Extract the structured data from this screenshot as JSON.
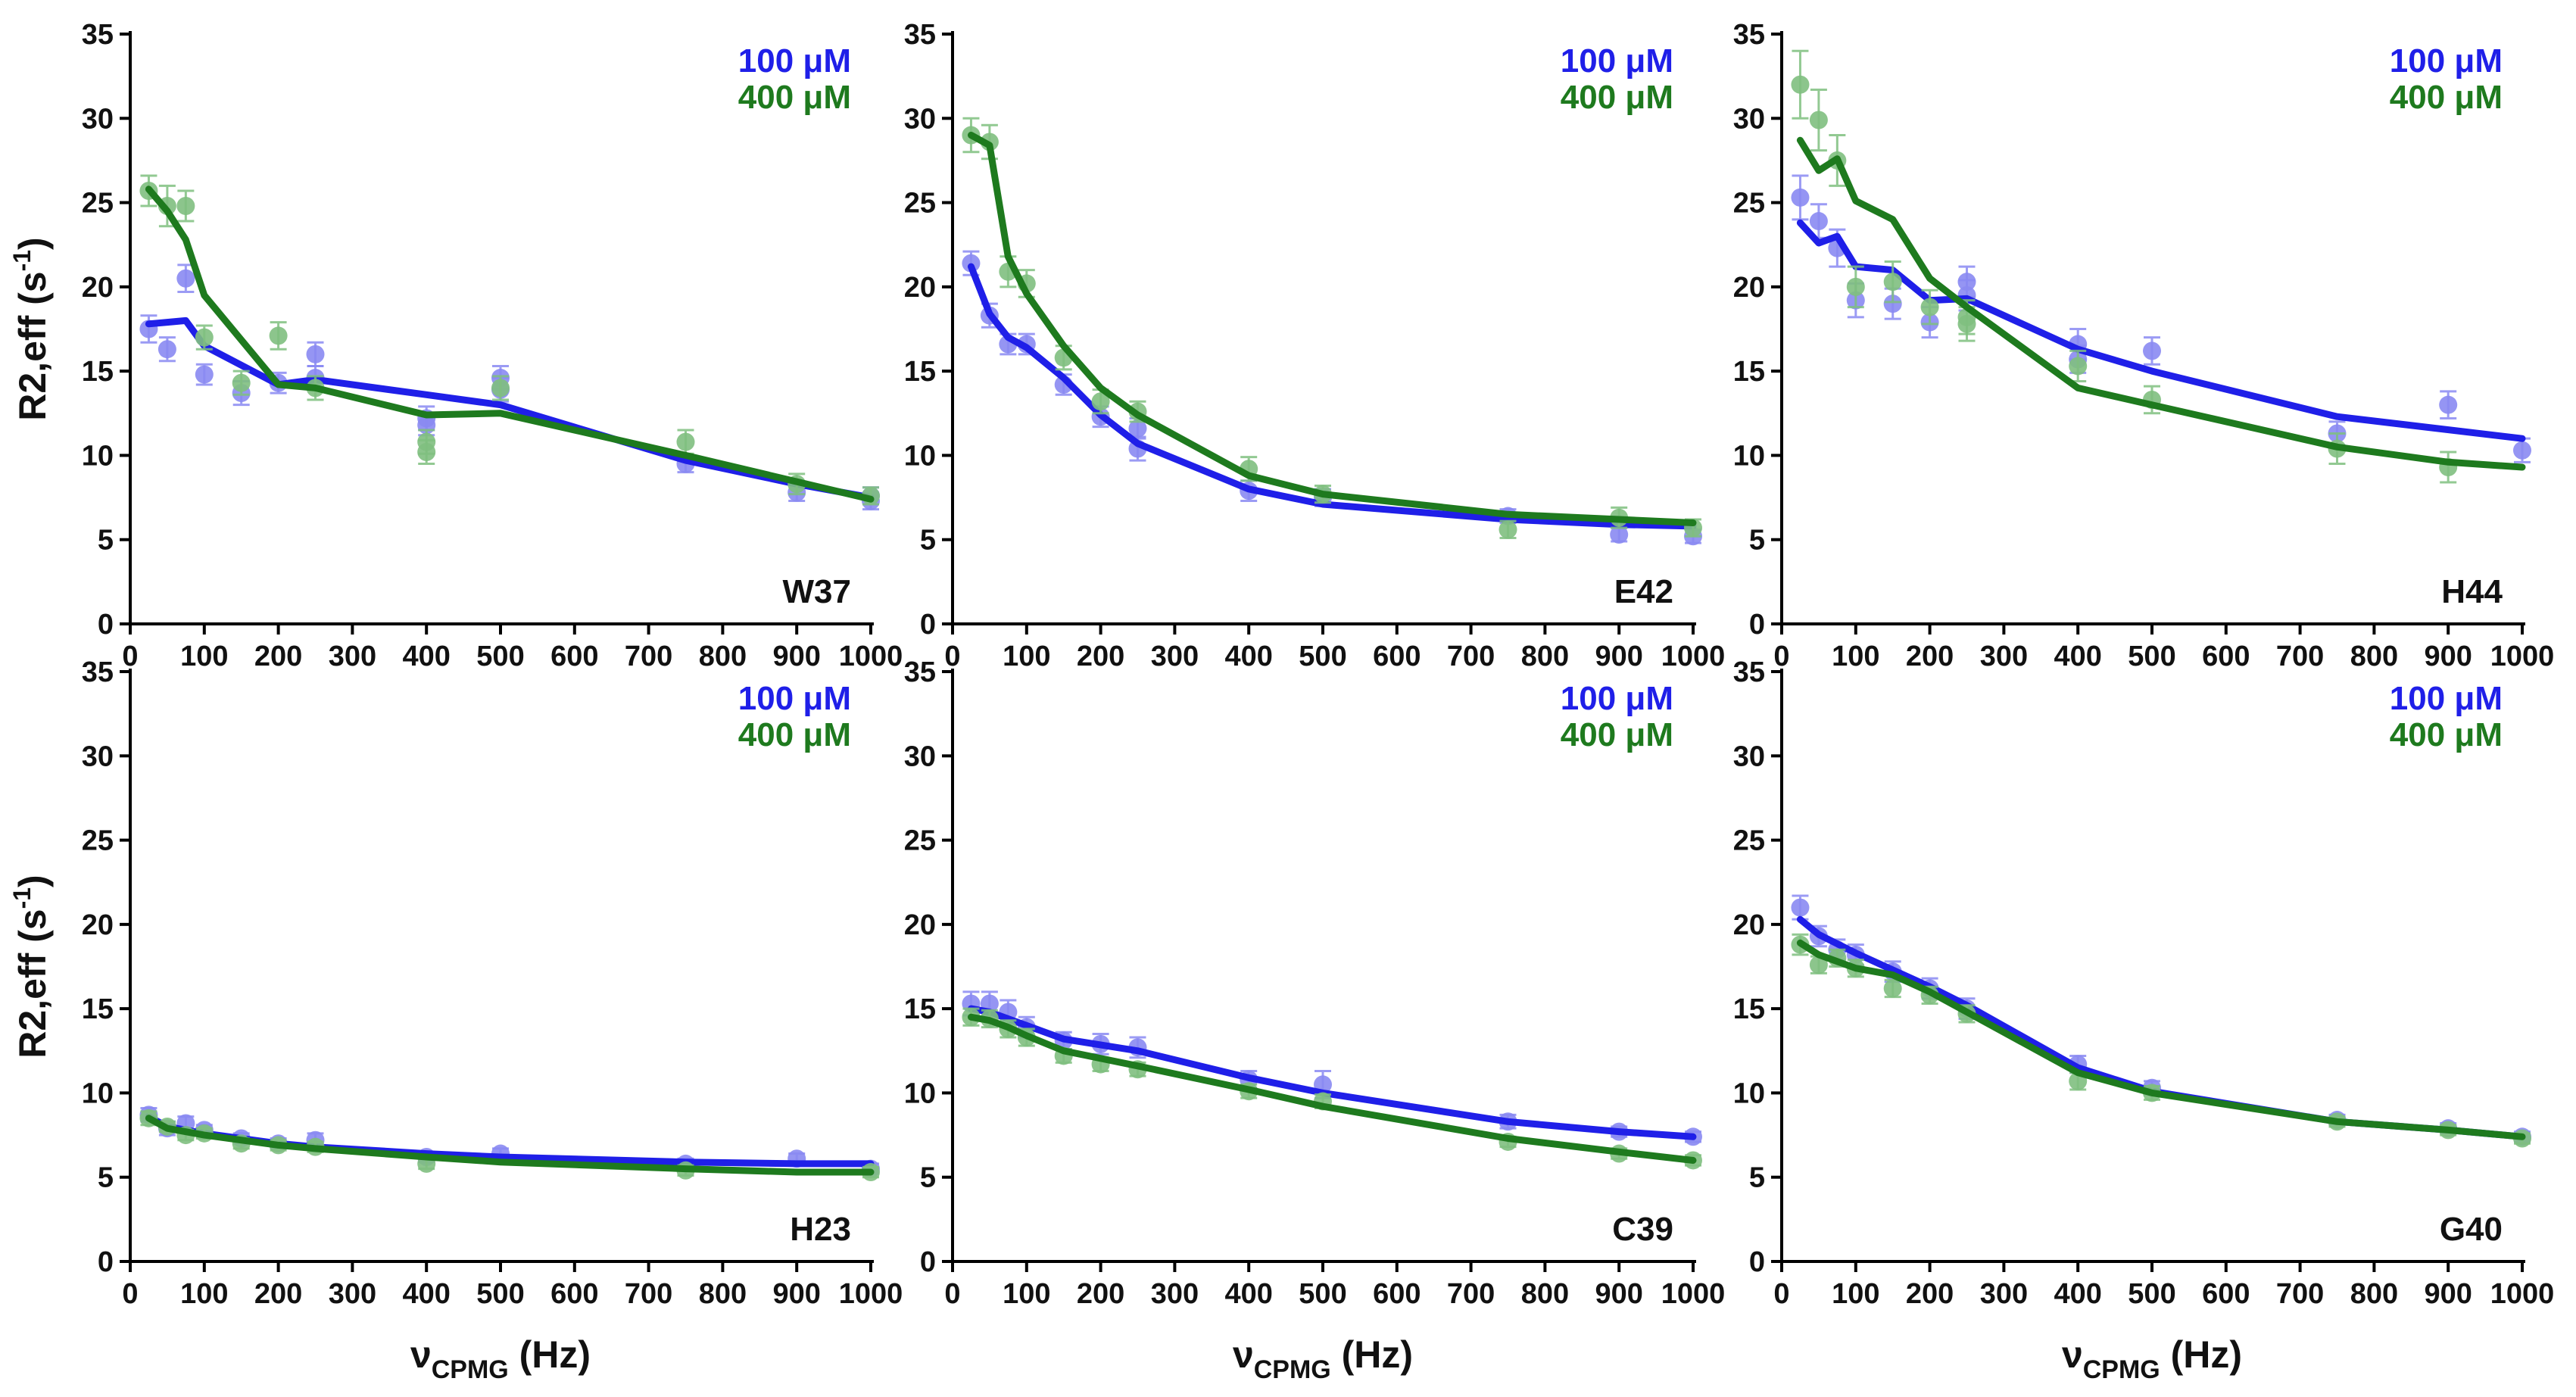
{
  "colors": {
    "c100": "#1f1fe8",
    "c400": "#1e7a1e",
    "c100_point": "#8a8af2",
    "c400_point": "#7fbf7f"
  },
  "axes": {
    "xlabel_nu": "ν",
    "xlabel_sub": "CPMG",
    "xlabel_unit": " (Hz)",
    "ylabel_main": "R2,eff (s",
    "ylabel_sup": "-1",
    "ylabel_close": ")",
    "xticks": [
      "0",
      "100",
      "200",
      "300",
      "400",
      "500",
      "600",
      "700",
      "800",
      "900",
      "1000"
    ],
    "yticks": [
      "0",
      "5",
      "10",
      "15",
      "20",
      "25",
      "30",
      "35"
    ]
  },
  "chart_data": [
    {
      "type": "scatter",
      "panel": "W37",
      "residue": "W37",
      "xlim": [
        0,
        1000
      ],
      "ylim": [
        0,
        35
      ],
      "xlabel": "νCPMG (Hz)",
      "ylabel": "R2,eff (s-1)",
      "series": [
        {
          "name": "100 μM",
          "color_key": "c100",
          "x": [
            25,
            50,
            75,
            100,
            150,
            200,
            250,
            250,
            400,
            400,
            500,
            500,
            750,
            900,
            1000,
            1000
          ],
          "y": [
            17.5,
            16.3,
            20.5,
            14.8,
            13.7,
            14.3,
            16.0,
            14.6,
            12.2,
            11.8,
            14.6,
            13.9,
            9.5,
            7.8,
            7.6,
            7.3
          ],
          "err": [
            0.8,
            0.7,
            0.8,
            0.6,
            0.7,
            0.6,
            0.7,
            0.7,
            0.7,
            0.6,
            0.7,
            0.7,
            0.5,
            0.5,
            0.5,
            0.5
          ],
          "fit_x": [
            25,
            50,
            75,
            100,
            200,
            250,
            400,
            500,
            750,
            900,
            1000
          ],
          "fit_y": [
            17.8,
            17.9,
            18.0,
            16.5,
            14.2,
            14.5,
            13.6,
            13.0,
            9.7,
            8.3,
            7.5
          ]
        },
        {
          "name": "400 μM",
          "color_key": "c400",
          "x": [
            25,
            50,
            75,
            100,
            150,
            200,
            250,
            400,
            400,
            500,
            750,
            900,
            1000
          ],
          "y": [
            25.7,
            24.8,
            24.8,
            17.0,
            14.3,
            17.1,
            14.0,
            10.8,
            10.2,
            14.0,
            10.8,
            8.3,
            7.6
          ],
          "err": [
            0.9,
            1.2,
            0.9,
            0.7,
            0.7,
            0.8,
            0.7,
            0.7,
            0.7,
            0.7,
            0.7,
            0.6,
            0.5
          ],
          "fit_x": [
            25,
            50,
            75,
            100,
            200,
            250,
            400,
            500,
            750,
            1000
          ],
          "fit_y": [
            25.8,
            24.5,
            22.8,
            19.5,
            14.2,
            14.0,
            12.4,
            12.5,
            10.0,
            7.4
          ]
        }
      ]
    },
    {
      "type": "scatter",
      "panel": "E42",
      "residue": "E42",
      "xlim": [
        0,
        1000
      ],
      "ylim": [
        0,
        35
      ],
      "xlabel": "νCPMG (Hz)",
      "ylabel": "R2,eff (s-1)",
      "series": [
        {
          "name": "100 μM",
          "color_key": "c100",
          "x": [
            25,
            50,
            75,
            100,
            150,
            200,
            250,
            250,
            400,
            500,
            750,
            900,
            1000
          ],
          "y": [
            21.4,
            18.3,
            16.6,
            16.6,
            14.2,
            12.3,
            10.4,
            11.6,
            7.9,
            7.5,
            6.4,
            5.3,
            5.2
          ],
          "err": [
            0.7,
            0.7,
            0.6,
            0.6,
            0.6,
            0.6,
            0.7,
            0.6,
            0.6,
            0.5,
            0.4,
            0.4,
            0.4
          ],
          "fit_x": [
            25,
            50,
            75,
            100,
            150,
            200,
            250,
            400,
            500,
            750,
            900,
            1000
          ],
          "fit_y": [
            21.2,
            18.4,
            17.0,
            16.4,
            14.6,
            12.4,
            10.7,
            8.0,
            7.1,
            6.2,
            5.9,
            5.8
          ]
        },
        {
          "name": "400 μM",
          "color_key": "c400",
          "x": [
            25,
            50,
            75,
            100,
            150,
            200,
            250,
            400,
            500,
            750,
            900,
            1000
          ],
          "y": [
            29.0,
            28.6,
            20.9,
            20.2,
            15.8,
            13.2,
            12.6,
            9.2,
            7.7,
            5.6,
            6.3,
            5.7
          ],
          "err": [
            1.0,
            1.0,
            0.9,
            0.8,
            0.7,
            0.7,
            0.6,
            0.7,
            0.5,
            0.5,
            0.6,
            0.5
          ],
          "fit_x": [
            25,
            50,
            75,
            100,
            150,
            200,
            250,
            400,
            500,
            750,
            900,
            1000
          ],
          "fit_y": [
            29.0,
            28.4,
            21.8,
            19.6,
            16.5,
            14.0,
            12.4,
            8.8,
            7.7,
            6.5,
            6.2,
            6.0
          ]
        }
      ]
    },
    {
      "type": "scatter",
      "panel": "H44",
      "residue": "H44",
      "xlim": [
        0,
        1000
      ],
      "ylim": [
        0,
        35
      ],
      "xlabel": "νCPMG (Hz)",
      "ylabel": "R2,eff (s-1)",
      "series": [
        {
          "name": "100 μM",
          "color_key": "c100",
          "x": [
            25,
            50,
            75,
            100,
            150,
            200,
            250,
            250,
            400,
            400,
            500,
            750,
            900,
            1000
          ],
          "y": [
            25.3,
            23.9,
            22.3,
            19.2,
            19.0,
            17.9,
            20.3,
            19.5,
            16.6,
            15.7,
            16.2,
            11.3,
            13.0,
            10.3
          ],
          "err": [
            1.3,
            1.0,
            1.1,
            1.0,
            0.9,
            0.9,
            0.9,
            0.9,
            0.9,
            0.8,
            0.8,
            0.7,
            0.8,
            0.7
          ],
          "fit_x": [
            25,
            50,
            75,
            100,
            150,
            200,
            250,
            400,
            500,
            750,
            1000
          ],
          "fit_y": [
            23.8,
            22.6,
            23.0,
            21.2,
            21.0,
            19.2,
            19.3,
            16.3,
            15.0,
            12.3,
            11.0
          ]
        },
        {
          "name": "400 μM",
          "color_key": "c400",
          "x": [
            25,
            50,
            75,
            100,
            150,
            200,
            250,
            250,
            400,
            500,
            750,
            900
          ],
          "y": [
            32.0,
            29.9,
            27.5,
            20.0,
            20.3,
            18.8,
            18.2,
            17.8,
            15.3,
            13.3,
            10.4,
            9.3
          ],
          "err": [
            2.0,
            1.8,
            1.5,
            1.2,
            1.2,
            1.0,
            1.0,
            1.0,
            0.9,
            0.8,
            0.9,
            0.9
          ],
          "fit_x": [
            25,
            50,
            75,
            100,
            150,
            200,
            250,
            400,
            500,
            750,
            900,
            1000
          ],
          "fit_y": [
            28.7,
            26.9,
            27.6,
            25.1,
            24.0,
            20.5,
            18.8,
            14.0,
            13.0,
            10.5,
            9.6,
            9.3
          ]
        }
      ]
    },
    {
      "type": "scatter",
      "panel": "H23",
      "residue": "H23",
      "xlim": [
        0,
        1000
      ],
      "ylim": [
        0,
        35
      ],
      "xlabel": "νCPMG (Hz)",
      "ylabel": "R2,eff (s-1)",
      "series": [
        {
          "name": "100 μM",
          "color_key": "c100",
          "x": [
            25,
            50,
            75,
            100,
            150,
            200,
            250,
            400,
            500,
            750,
            900,
            1000
          ],
          "y": [
            8.7,
            7.9,
            8.2,
            7.8,
            7.3,
            7.0,
            7.2,
            6.2,
            6.4,
            5.8,
            6.1,
            5.5
          ],
          "err": [
            0.4,
            0.4,
            0.4,
            0.3,
            0.3,
            0.3,
            0.4,
            0.3,
            0.3,
            0.3,
            0.3,
            0.3
          ],
          "fit_x": [
            25,
            50,
            100,
            200,
            250,
            400,
            500,
            750,
            900,
            1000
          ],
          "fit_y": [
            8.6,
            8.0,
            7.6,
            7.0,
            6.8,
            6.4,
            6.2,
            5.9,
            5.8,
            5.8
          ]
        },
        {
          "name": "400 μM",
          "color_key": "c400",
          "x": [
            25,
            50,
            75,
            100,
            150,
            200,
            250,
            400,
            750,
            1000
          ],
          "y": [
            8.5,
            8.0,
            7.5,
            7.6,
            7.0,
            6.9,
            6.8,
            5.8,
            5.4,
            5.3
          ],
          "err": [
            0.4,
            0.3,
            0.3,
            0.3,
            0.3,
            0.3,
            0.3,
            0.3,
            0.3,
            0.3
          ],
          "fit_x": [
            25,
            50,
            100,
            200,
            250,
            400,
            500,
            750,
            900,
            1000
          ],
          "fit_y": [
            8.5,
            7.9,
            7.5,
            6.9,
            6.7,
            6.2,
            5.9,
            5.5,
            5.3,
            5.3
          ]
        }
      ]
    },
    {
      "type": "scatter",
      "panel": "C39",
      "residue": "C39",
      "xlim": [
        0,
        1000
      ],
      "ylim": [
        0,
        35
      ],
      "xlabel": "νCPMG (Hz)",
      "ylabel": "R2,eff (s-1)",
      "series": [
        {
          "name": "100 μM",
          "color_key": "c100",
          "x": [
            25,
            50,
            75,
            100,
            150,
            200,
            250,
            400,
            500,
            750,
            900,
            1000
          ],
          "y": [
            15.3,
            15.3,
            14.8,
            13.9,
            13.1,
            12.9,
            12.7,
            10.8,
            10.5,
            8.3,
            7.7,
            7.4
          ],
          "err": [
            0.7,
            0.7,
            0.7,
            0.6,
            0.5,
            0.6,
            0.6,
            0.5,
            0.8,
            0.4,
            0.3,
            0.3
          ],
          "fit_x": [
            25,
            50,
            75,
            100,
            150,
            250,
            400,
            500,
            750,
            900,
            1000
          ],
          "fit_y": [
            15.0,
            14.8,
            14.4,
            14.0,
            13.2,
            12.5,
            10.9,
            10.0,
            8.3,
            7.7,
            7.4
          ]
        },
        {
          "name": "400 μM",
          "color_key": "c400",
          "x": [
            25,
            50,
            75,
            100,
            150,
            200,
            250,
            400,
            500,
            750,
            900,
            1000
          ],
          "y": [
            14.5,
            14.4,
            13.8,
            13.3,
            12.2,
            11.7,
            11.4,
            10.1,
            9.5,
            7.1,
            6.4,
            6.0
          ],
          "err": [
            0.5,
            0.5,
            0.5,
            0.5,
            0.4,
            0.4,
            0.4,
            0.4,
            0.4,
            0.3,
            0.3,
            0.3
          ],
          "fit_x": [
            25,
            50,
            75,
            100,
            150,
            250,
            400,
            500,
            750,
            900,
            1000
          ],
          "fit_y": [
            14.5,
            14.3,
            13.9,
            13.4,
            12.5,
            11.6,
            10.2,
            9.2,
            7.3,
            6.5,
            6.0
          ]
        }
      ]
    },
    {
      "type": "scatter",
      "panel": "G40",
      "residue": "G40",
      "xlim": [
        0,
        1000
      ],
      "ylim": [
        0,
        35
      ],
      "xlabel": "νCPMG (Hz)",
      "ylabel": "R2,eff (s-1)",
      "series": [
        {
          "name": "100 μM",
          "color_key": "c100",
          "x": [
            25,
            50,
            75,
            100,
            150,
            200,
            250,
            400,
            500,
            750,
            900,
            1000
          ],
          "y": [
            21.0,
            19.3,
            18.5,
            18.2,
            17.2,
            16.2,
            15.0,
            11.7,
            10.3,
            8.4,
            7.9,
            7.4
          ],
          "err": [
            0.7,
            0.6,
            0.6,
            0.6,
            0.6,
            0.6,
            0.6,
            0.5,
            0.4,
            0.3,
            0.3,
            0.3
          ],
          "fit_x": [
            25,
            50,
            100,
            150,
            200,
            250,
            400,
            500,
            750,
            900,
            1000
          ],
          "fit_y": [
            20.3,
            19.4,
            18.3,
            17.3,
            16.3,
            15.2,
            11.5,
            10.1,
            8.3,
            7.8,
            7.4
          ]
        },
        {
          "name": "400 μM",
          "color_key": "c400",
          "x": [
            25,
            50,
            75,
            100,
            150,
            200,
            250,
            400,
            500,
            750,
            900,
            1000
          ],
          "y": [
            18.8,
            17.6,
            18.0,
            17.4,
            16.2,
            15.8,
            14.7,
            10.7,
            10.0,
            8.3,
            7.8,
            7.3
          ],
          "err": [
            0.6,
            0.5,
            0.5,
            0.5,
            0.5,
            0.5,
            0.5,
            0.5,
            0.4,
            0.3,
            0.3,
            0.3
          ],
          "fit_x": [
            25,
            50,
            100,
            150,
            200,
            250,
            400,
            500,
            750,
            900,
            1000
          ],
          "fit_y": [
            18.9,
            18.2,
            17.4,
            17.0,
            16.0,
            14.8,
            11.2,
            10.0,
            8.3,
            7.8,
            7.4
          ]
        }
      ]
    }
  ]
}
